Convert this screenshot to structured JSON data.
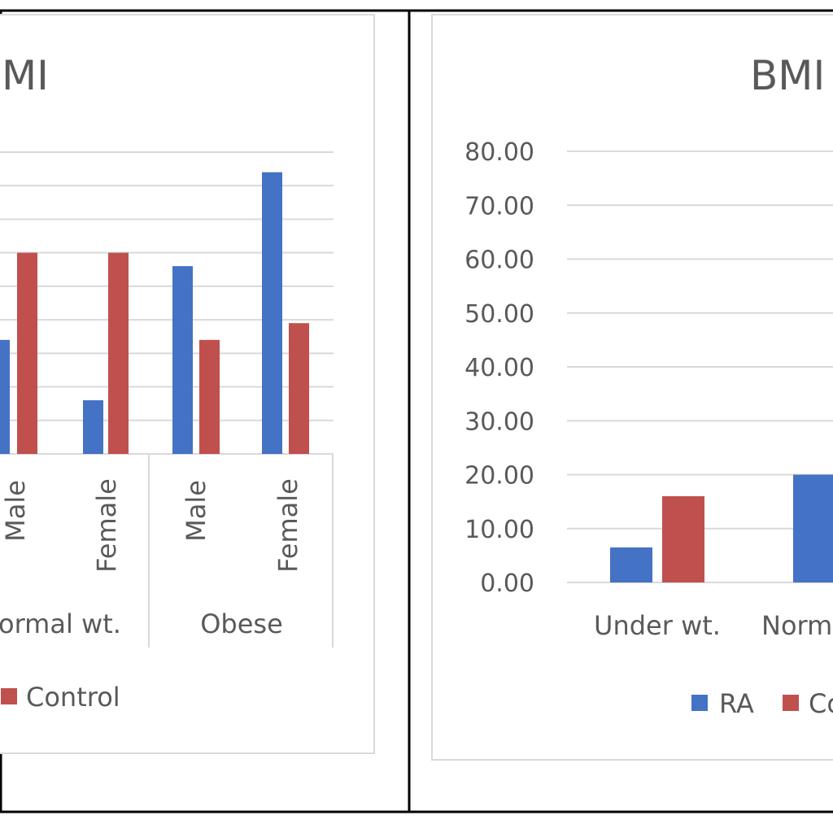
{
  "colors": {
    "ra": "#4472C4",
    "control": "#C0504D",
    "grid": "#D9D9D9",
    "text": "#595959",
    "frame": "#000000"
  },
  "chart_data": [
    {
      "type": "bar",
      "title": "BMI",
      "subcategories": [
        "Male",
        "Female",
        "Male",
        "Female"
      ],
      "groups": [
        "Normal wt.",
        "Obese"
      ],
      "series": [
        {
          "name": "RA",
          "values": [
            null,
            16,
            56,
            84
          ]
        },
        {
          "name": "Control",
          "values": [
            60,
            60,
            34,
            39
          ]
        }
      ],
      "visible_partial": {
        "left_bar_value": 34
      },
      "legend_entries": [
        "Control"
      ],
      "legend_position": "bottom",
      "grid": true
    },
    {
      "type": "bar",
      "title": "BMI",
      "categories": [
        "Under wt.",
        "Normal wt."
      ],
      "series": [
        {
          "name": "RA",
          "values": [
            6.5,
            20
          ]
        },
        {
          "name": "Control",
          "values": [
            16,
            null
          ]
        }
      ],
      "y_tick_labels": [
        "0.00",
        "10.00",
        "20.00",
        "30.00",
        "40.00",
        "50.00",
        "60.00",
        "70.00",
        "80.00"
      ],
      "ylim": [
        0,
        80
      ],
      "legend_entries": [
        "RA",
        "Co"
      ],
      "legend_position": "bottom",
      "grid": true
    }
  ],
  "left_labels": {
    "title": "MI",
    "sub": [
      "Male",
      "Female",
      "Male",
      "Female"
    ],
    "partial_sub": "Male",
    "group_normal": "ormal wt.",
    "group_obese": "Obese",
    "legend": "Control"
  },
  "right_labels": {
    "title": "BMI",
    "ticks": [
      "80.00",
      "70.00",
      "60.00",
      "50.00",
      "40.00",
      "30.00",
      "20.00",
      "10.00",
      "0.00"
    ],
    "cat_under": "Under wt.",
    "cat_normal": "Norm",
    "legend_ra": "RA",
    "legend_co": "Co"
  }
}
